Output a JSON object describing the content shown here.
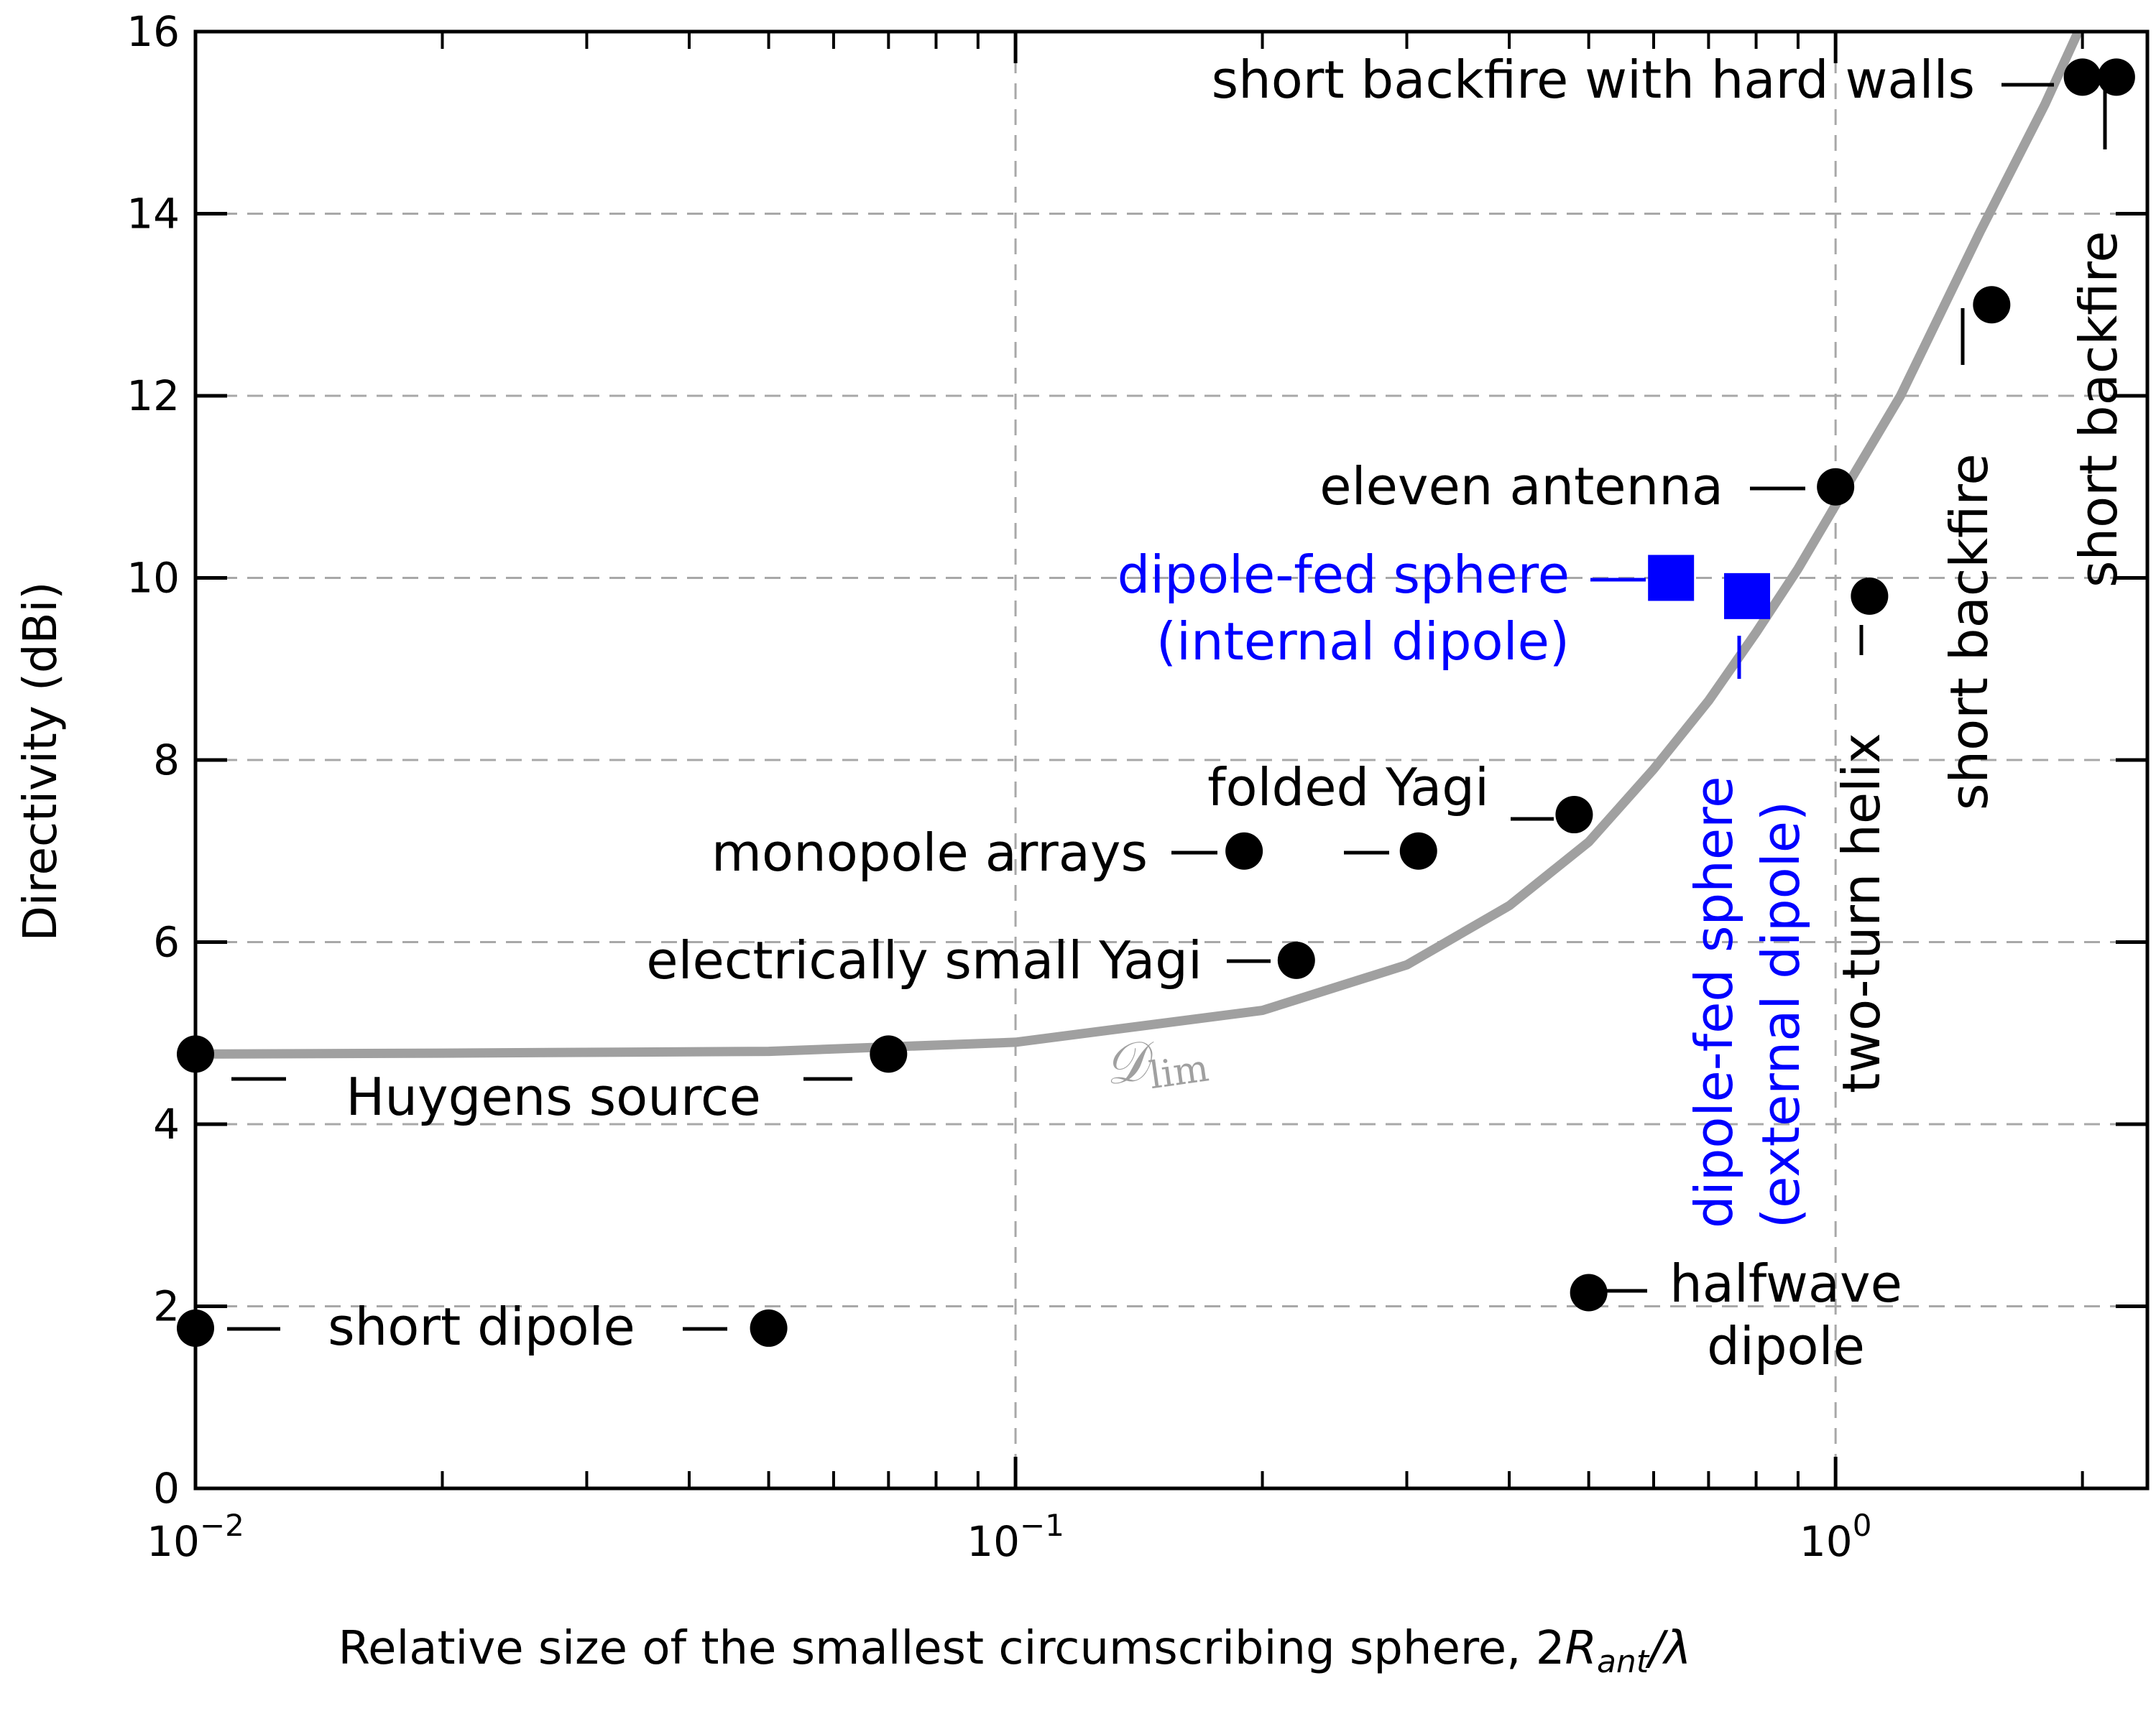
{
  "chart_data": {
    "type": "scatter",
    "title": "",
    "xlabel": "Relative size of the smallest circumscribing sphere, 2",
    "xlabel_symbol": "R",
    "xlabel_subscript": "ant",
    "xlabel_tail": "/λ",
    "ylabel": "Directivity (dBi)",
    "xscale": "log",
    "xlim": [
      0.01,
      2.4
    ],
    "ylim": [
      0,
      16
    ],
    "grid": true,
    "x_tick_labels": [
      {
        "base": "10",
        "exp": "−2",
        "value": 0.01
      },
      {
        "base": "10",
        "exp": "−1",
        "value": 0.1
      },
      {
        "base": "10",
        "exp": "0",
        "value": 1
      }
    ],
    "y_ticks": [
      0,
      2,
      4,
      6,
      8,
      10,
      12,
      14,
      16
    ],
    "curve": {
      "label_main": "𝒟",
      "label_sub": "lim",
      "color": "#a0a0a0",
      "x": [
        0.01,
        0.02,
        0.05,
        0.1,
        0.2,
        0.3,
        0.4,
        0.5,
        0.6,
        0.7,
        0.8,
        0.9,
        1.0,
        1.2,
        1.5,
        1.8,
        2.0
      ],
      "y": [
        4.77,
        4.78,
        4.8,
        4.9,
        5.25,
        5.75,
        6.4,
        7.1,
        7.9,
        8.65,
        9.4,
        10.1,
        10.8,
        12.0,
        13.8,
        15.2,
        16.1
      ]
    },
    "points": [
      {
        "x": 0.01,
        "y": 4.77,
        "marker": "circle",
        "color": "#000000"
      },
      {
        "x": 0.07,
        "y": 4.77,
        "marker": "circle",
        "color": "#000000"
      },
      {
        "x": 0.01,
        "y": 1.76,
        "marker": "circle",
        "color": "#000000"
      },
      {
        "x": 0.05,
        "y": 1.76,
        "marker": "circle",
        "color": "#000000"
      },
      {
        "x": 0.19,
        "y": 7.0,
        "marker": "circle",
        "color": "#000000"
      },
      {
        "x": 0.31,
        "y": 7.0,
        "marker": "circle",
        "color": "#000000"
      },
      {
        "x": 0.22,
        "y": 5.8,
        "marker": "circle",
        "color": "#000000"
      },
      {
        "x": 0.48,
        "y": 7.4,
        "marker": "circle",
        "color": "#000000"
      },
      {
        "x": 0.5,
        "y": 2.15,
        "marker": "circle",
        "color": "#000000"
      },
      {
        "x": 1.0,
        "y": 11.0,
        "marker": "circle",
        "color": "#000000"
      },
      {
        "x": 1.1,
        "y": 9.8,
        "marker": "circle",
        "color": "#000000"
      },
      {
        "x": 1.55,
        "y": 13.0,
        "marker": "circle",
        "color": "#000000"
      },
      {
        "x": 2.0,
        "y": 15.5,
        "marker": "circle",
        "color": "#000000"
      },
      {
        "x": 2.2,
        "y": 15.5,
        "marker": "circle",
        "color": "#000000"
      },
      {
        "x": 0.63,
        "y": 10.0,
        "marker": "square",
        "color": "#0000ff"
      },
      {
        "x": 0.78,
        "y": 9.8,
        "marker": "square",
        "color": "#0000ff"
      }
    ],
    "annotations": [
      {
        "lines": [
          "short backfire with hard walls"
        ],
        "color": "#000000",
        "anchor": "end",
        "rotate": false
      },
      {
        "lines": [
          "short backfire"
        ],
        "color": "#000000",
        "anchor": "start",
        "rotate": true
      },
      {
        "lines": [
          "short backfire"
        ],
        "color": "#000000",
        "anchor": "start",
        "rotate": true
      },
      {
        "lines": [
          "eleven antenna"
        ],
        "color": "#000000",
        "anchor": "end",
        "rotate": false
      },
      {
        "lines": [
          "dipole-fed sphere",
          "(internal dipole)"
        ],
        "color": "#0000ff",
        "anchor": "end",
        "rotate": false
      },
      {
        "lines": [
          "dipole-fed sphere",
          "(external dipole)"
        ],
        "color": "#0000ff",
        "anchor": "start",
        "rotate": true
      },
      {
        "lines": [
          "two-turn helix"
        ],
        "color": "#000000",
        "anchor": "start",
        "rotate": true
      },
      {
        "lines": [
          "folded Yagi"
        ],
        "color": "#000000",
        "anchor": "end",
        "rotate": false
      },
      {
        "lines": [
          "monopole arrays"
        ],
        "color": "#000000",
        "anchor": "end",
        "rotate": false
      },
      {
        "lines": [
          "electrically small Yagi"
        ],
        "color": "#000000",
        "anchor": "end",
        "rotate": false
      },
      {
        "lines": [
          "Huygens source"
        ],
        "color": "#000000",
        "anchor": "middle",
        "rotate": false
      },
      {
        "lines": [
          "short dipole"
        ],
        "color": "#000000",
        "anchor": "middle",
        "rotate": false
      },
      {
        "lines": [
          "halfwave",
          "dipole"
        ],
        "color": "#000000",
        "anchor": "middle",
        "rotate": false
      }
    ]
  }
}
